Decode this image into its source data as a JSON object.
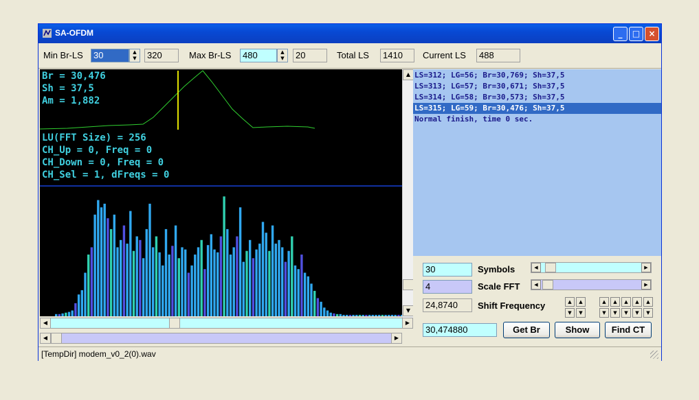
{
  "window": {
    "title": "SA-OFDM",
    "min_label": "_",
    "max_label": "□",
    "close_label": "×"
  },
  "toolbar": {
    "min_br_ls_label": "Min Br-LS",
    "min_br_ls_value": "30",
    "min_br_ls_ro": "320",
    "max_br_ls_label": "Max Br-LS",
    "max_br_ls_value": "480",
    "max_br_ls_ro": "20",
    "total_ls_label": "Total LS",
    "total_ls_value": "1410",
    "current_ls_label": "Current LS",
    "current_ls_value": "488"
  },
  "graph": {
    "lines_top": [
      "Br = 30,476",
      "Sh = 37,5",
      "Am = 1,882"
    ],
    "lines_mid": [
      "LU(FFT Size) = 256",
      "CH_Up = 0, Freq = 0",
      "CH_Down = 0, Freq = 0",
      "CH_Sel = 1, dFreqs = 0"
    ],
    "colors": {
      "curve": "#30d030",
      "marker": "#e0e000",
      "divider": "#1030a0",
      "bar_main": "#30a8f0",
      "bar_alt1": "#30d0b0",
      "bar_alt2": "#5050e0"
    },
    "spectrum": [
      3,
      3,
      4,
      5,
      6,
      8,
      18,
      30,
      36,
      60,
      85,
      95,
      140,
      160,
      150,
      155,
      135,
      120,
      140,
      95,
      105,
      125,
      100,
      145,
      90,
      110,
      105,
      80,
      120,
      155,
      95,
      110,
      88,
      70,
      120,
      85,
      97,
      125,
      80,
      95,
      92,
      60,
      70,
      85,
      95,
      105,
      65,
      98,
      113,
      92,
      88,
      110,
      165,
      120,
      85,
      95,
      110,
      150,
      75,
      90,
      105,
      80,
      92,
      100,
      130,
      115,
      90,
      125,
      100,
      105,
      95,
      75,
      90,
      110,
      70,
      65,
      85,
      60,
      55,
      45,
      35,
      25,
      20,
      12,
      8,
      5,
      4,
      3,
      3,
      2,
      2,
      2,
      2,
      2,
      2,
      2,
      2,
      2,
      2,
      2,
      2,
      2,
      2,
      2,
      2,
      2,
      2,
      2,
      2,
      2
    ]
  },
  "log": [
    "LS=312; LG=56; Br=30,769; Sh=37,5",
    "LS=313; LG=57; Br=30,671; Sh=37,5",
    "LS=314; LG=58; Br=30,573; Sh=37,5",
    "LS=315; LG=59; Br=30,476; Sh=37,5",
    "Normal finish, time 0 sec."
  ],
  "log_selected_index": 3,
  "controls": {
    "symbols_value": "30",
    "symbols_label": "Symbols",
    "scale_fft_value": "4",
    "scale_fft_label": "Scale FFT",
    "shift_freq_value": "24,8740",
    "shift_freq_label": "Shift Frequency",
    "br_value": "30,474880",
    "get_br_label": "Get Br",
    "show_label": "Show",
    "find_ct_label": "Find CT"
  },
  "status": {
    "text": "[TempDir] modem_v0_2(0).wav"
  }
}
